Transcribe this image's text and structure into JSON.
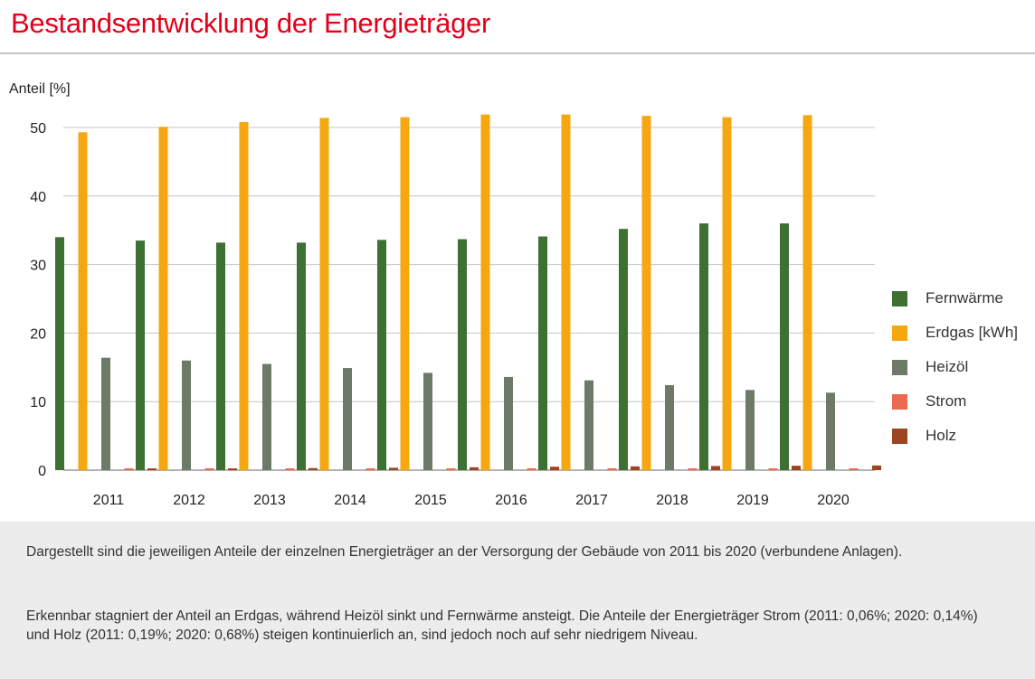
{
  "page": {
    "title": "Bestandsentwicklung der Energieträger"
  },
  "chart_data": {
    "type": "bar",
    "ylabel": "Anteil [%]",
    "xlabel": "",
    "ylim": [
      0,
      50
    ],
    "yticks": [
      0,
      10,
      20,
      30,
      40,
      50
    ],
    "grid": true,
    "legend_position": "right",
    "categories": [
      "2011",
      "2012",
      "2013",
      "2014",
      "2015",
      "2016",
      "2017",
      "2018",
      "2019",
      "2020"
    ],
    "series": [
      {
        "name": "Fernwärme",
        "color": "#3d7033",
        "values": [
          34.0,
          33.5,
          33.2,
          33.2,
          33.6,
          33.7,
          34.1,
          35.2,
          36.0,
          36.0
        ]
      },
      {
        "name": "Erdgas [kWh]",
        "color": "#f5a712",
        "values": [
          49.3,
          50.1,
          50.8,
          51.4,
          51.5,
          51.9,
          51.9,
          51.7,
          51.5,
          51.8
        ]
      },
      {
        "name": "Heizöl",
        "color": "#6d7a68",
        "values": [
          16.4,
          16.0,
          15.5,
          14.9,
          14.2,
          13.6,
          13.1,
          12.4,
          11.7,
          11.3
        ]
      },
      {
        "name": "Strom",
        "color": "#ec6a50",
        "values": [
          0.06,
          0.07,
          0.08,
          0.09,
          0.1,
          0.11,
          0.12,
          0.13,
          0.14,
          0.14
        ]
      },
      {
        "name": "Holz",
        "color": "#9c4520",
        "values": [
          0.19,
          0.25,
          0.3,
          0.35,
          0.42,
          0.5,
          0.55,
          0.6,
          0.64,
          0.68
        ]
      }
    ]
  },
  "notes": {
    "paragraph_1": "Dargestellt sind die jeweiligen Anteile der einzelnen Energieträger an der Versorgung der Gebäude von 2011 bis 2020 (verbundene Anlagen).",
    "paragraph_2": "Erkennbar stagniert der Anteil an Erdgas, während Heizöl sinkt und Fernwärme ansteigt. Die Anteile der Energieträger Strom (2011: 0,06%; 2020: 0,14%) und Holz (2011: 0,19%; 2020: 0,68%) steigen kontinuierlich an, sind jedoch noch auf sehr niedrigem Niveau."
  }
}
